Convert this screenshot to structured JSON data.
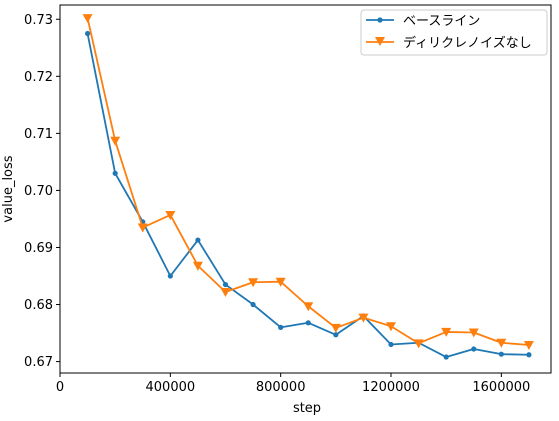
{
  "chart_data": {
    "type": "line",
    "title": "",
    "xlabel": "step",
    "ylabel": "value_loss",
    "xlim": [
      0,
      1780000
    ],
    "ylim": [
      0.668,
      0.7325
    ],
    "x_ticks": [
      0,
      400000,
      800000,
      1200000,
      1600000
    ],
    "y_ticks": [
      0.67,
      0.68,
      0.69,
      0.7,
      0.71,
      0.72,
      0.73
    ],
    "y_tick_labels": [
      "0.67",
      "0.68",
      "0.69",
      "0.70",
      "0.71",
      "0.72",
      "0.73"
    ],
    "grid": false,
    "legend_position": "top-right",
    "x": [
      100000,
      200000,
      300000,
      400000,
      500000,
      600000,
      700000,
      800000,
      900000,
      1000000,
      1100000,
      1200000,
      1300000,
      1400000,
      1500000,
      1600000,
      1700000
    ],
    "series": [
      {
        "name": "ベースライン",
        "color": "#1f77b4",
        "marker": "circle",
        "values": [
          0.7275,
          0.703,
          0.6945,
          0.685,
          0.6913,
          0.6835,
          0.68,
          0.676,
          0.6768,
          0.6747,
          0.678,
          0.673,
          0.6733,
          0.6708,
          0.6722,
          0.6713,
          0.6712
        ]
      },
      {
        "name": "ディリクレノイズなし",
        "color": "#ff7f0e",
        "marker": "triangle-down",
        "values": [
          0.7302,
          0.7087,
          0.6935,
          0.6957,
          0.6868,
          0.6822,
          0.6839,
          0.684,
          0.6797,
          0.6759,
          0.6777,
          0.6762,
          0.6732,
          0.6752,
          0.6751,
          0.6733,
          0.6729
        ]
      }
    ]
  }
}
